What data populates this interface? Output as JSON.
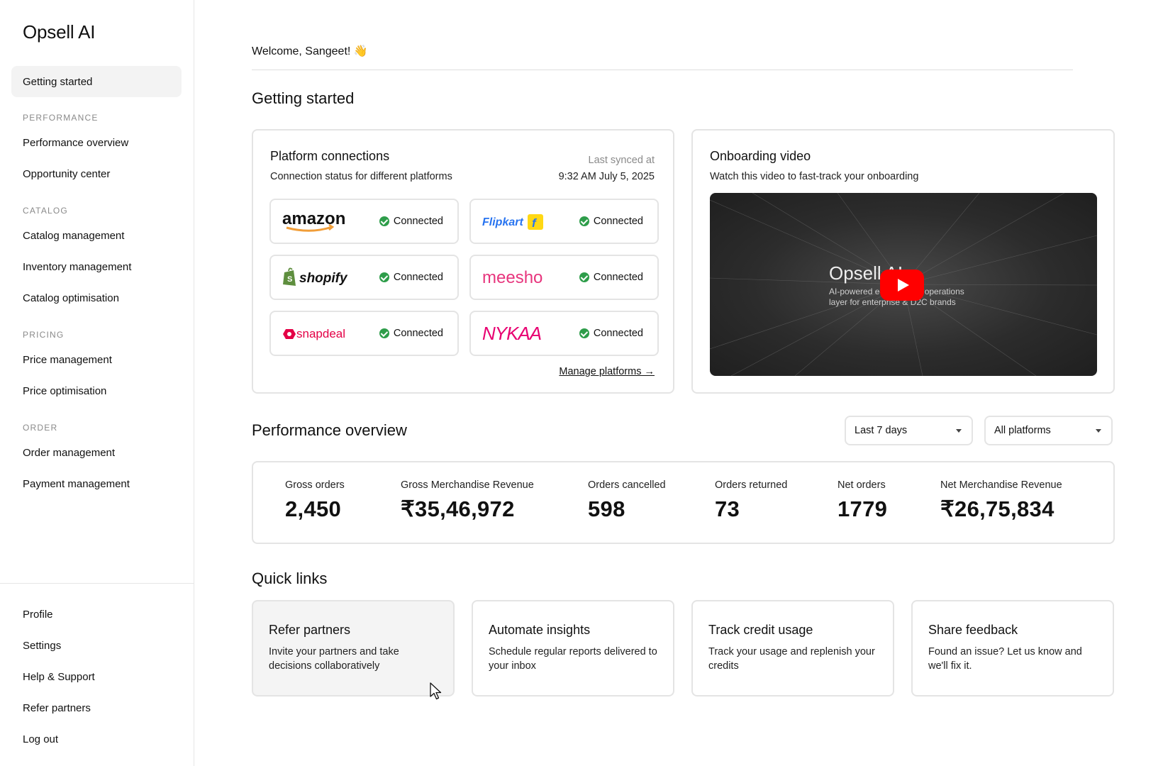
{
  "app": {
    "brand": "Opsell AI"
  },
  "sidebar": {
    "top_item": "Getting started",
    "sections": [
      {
        "label": "PERFORMANCE",
        "items": [
          "Performance overview",
          "Opportunity center"
        ]
      },
      {
        "label": "CATALOG",
        "items": [
          "Catalog management",
          "Inventory management",
          "Catalog optimisation"
        ]
      },
      {
        "label": "PRICING",
        "items": [
          "Price management",
          "Price optimisation"
        ]
      },
      {
        "label": "ORDER",
        "items": [
          "Order management",
          "Payment management"
        ]
      }
    ],
    "bottom_items": [
      "Profile",
      "Settings",
      "Help & Support",
      "Refer partners",
      "Log out"
    ]
  },
  "header": {
    "welcome": "Welcome, Sangeet! 👋"
  },
  "getting_started": {
    "title": "Getting started",
    "platforms_card": {
      "title": "Platform connections",
      "subtitle": "Connection status for different platforms",
      "last_synced_label": "Last synced at",
      "last_synced_value": "9:32 AM July 5, 2025",
      "platforms": [
        {
          "name": "amazon",
          "status": "Connected"
        },
        {
          "name": "Flipkart",
          "status": "Connected"
        },
        {
          "name": "shopify",
          "status": "Connected"
        },
        {
          "name": "meesho",
          "status": "Connected"
        },
        {
          "name": "snapdeal",
          "status": "Connected"
        },
        {
          "name": "NYKAA",
          "status": "Connected"
        }
      ],
      "manage_link": "Manage platforms →"
    },
    "video_card": {
      "title": "Onboarding video",
      "subtitle": "Watch this video to fast-track your onboarding",
      "video_title": "Opsell AI",
      "video_subtitle": "AI-powered e-commerce operations layer for enterprise & D2C brands"
    }
  },
  "performance": {
    "title": "Performance overview",
    "range_filter": "Last 7 days",
    "platform_filter": "All platforms",
    "metrics": [
      {
        "label": "Gross orders",
        "value": "2,450"
      },
      {
        "label": "Gross Merchandise Revenue",
        "value": "₹35,46,972"
      },
      {
        "label": "Orders cancelled",
        "value": "598"
      },
      {
        "label": "Orders returned",
        "value": "73"
      },
      {
        "label": "Net orders",
        "value": "1779"
      },
      {
        "label": "Net Merchandise Revenue",
        "value": "₹26,75,834"
      }
    ]
  },
  "quick_links": {
    "title": "Quick links",
    "items": [
      {
        "title": "Refer partners",
        "desc": "Invite your partners and take decisions collaboratively"
      },
      {
        "title": "Automate insights",
        "desc": "Schedule regular reports delivered to your inbox"
      },
      {
        "title": "Track credit usage",
        "desc": "Track your usage and replenish your credits"
      },
      {
        "title": "Share feedback",
        "desc": "Found an issue? Let us know and we'll fix it."
      }
    ]
  },
  "colors": {
    "connected": "#2e9d4a",
    "amazon_arrow": "#f19e39",
    "flipkart": "#2874f0",
    "meesho": "#e7357d",
    "snapdeal": "#e40046",
    "nykaa": "#e80071",
    "shopify": "#5e8e3e",
    "play": "#ff0000"
  }
}
